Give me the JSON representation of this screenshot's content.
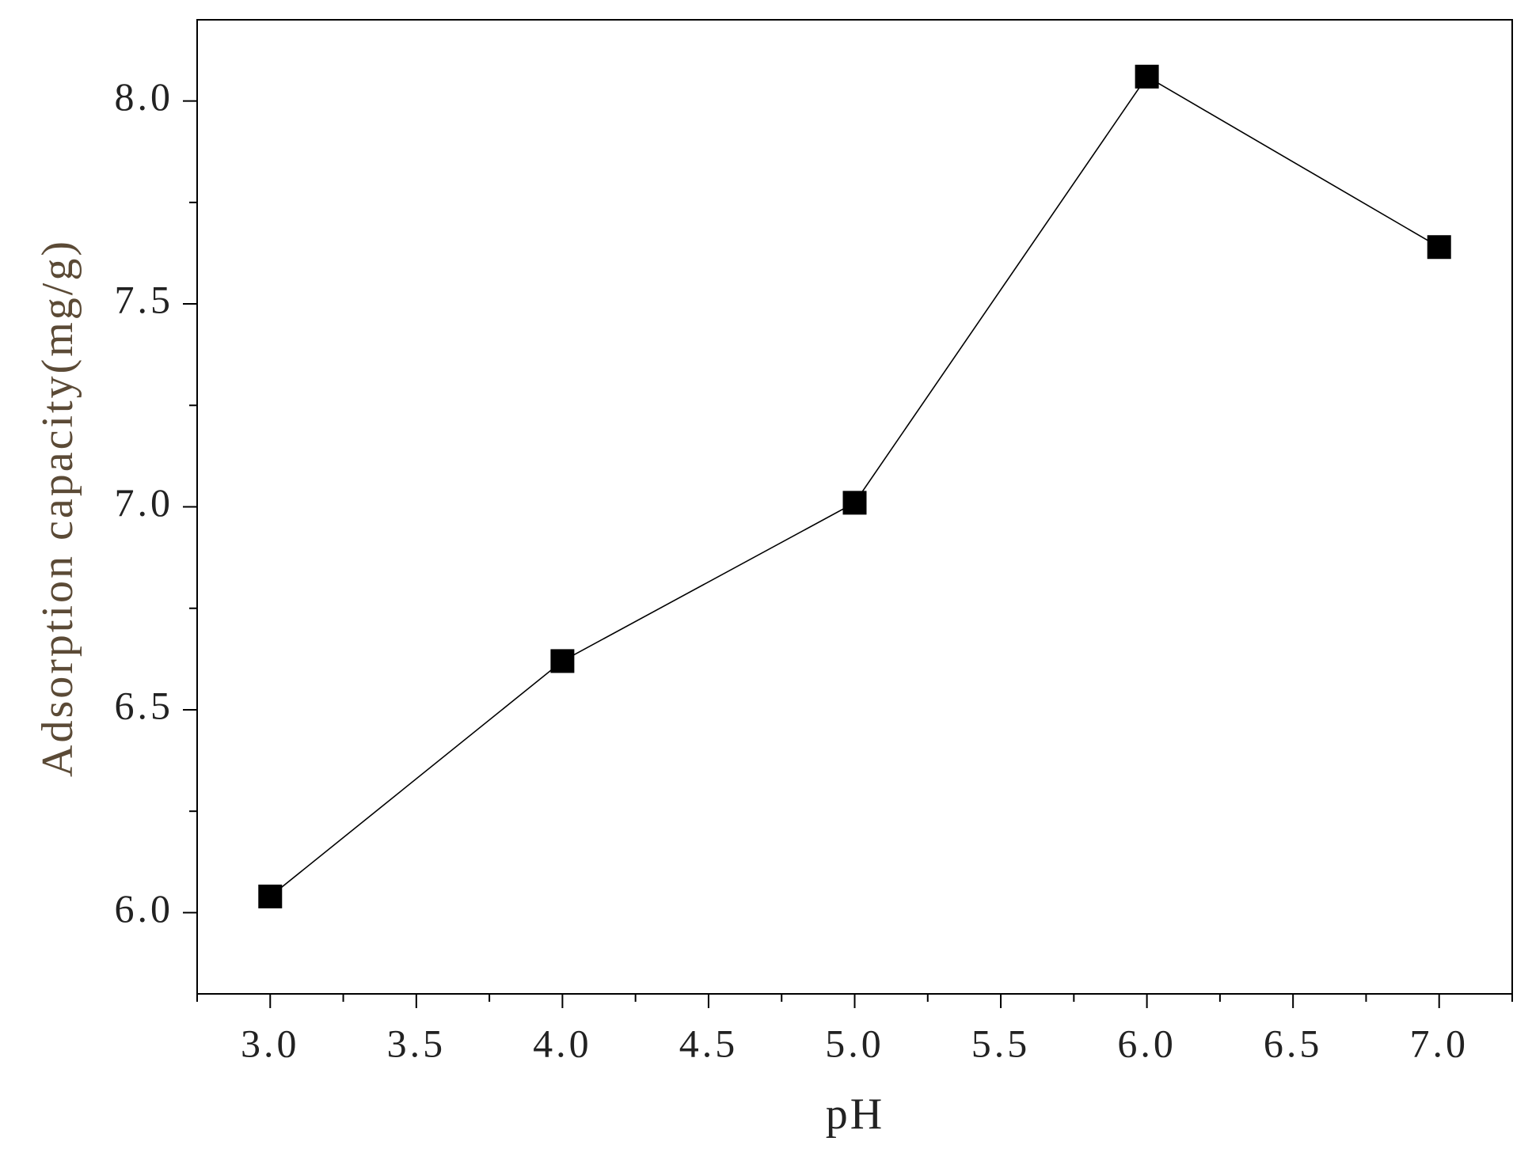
{
  "chart_data": {
    "type": "line",
    "x_label": "pH",
    "y_label": "Adsorption capacity(mg/g)",
    "x": [
      3,
      4,
      5,
      6,
      7
    ],
    "series": [
      {
        "name": "Adsorption capacity",
        "color": "#000000",
        "marker": "square",
        "values": [
          6.04,
          6.62,
          7.01,
          8.06,
          7.64
        ]
      }
    ],
    "xlim": [
      2.75,
      7.25
    ],
    "ylim": [
      5.8,
      8.2
    ],
    "xticks": [
      {
        "value": 3,
        "label": "3.0"
      },
      3.5,
      {
        "value": 4,
        "label": "4.0"
      },
      4.5,
      {
        "value": 5,
        "label": "5.0"
      },
      5.5,
      {
        "value": 6,
        "label": "6.0"
      },
      6.5,
      {
        "value": 7,
        "label": "7.0"
      }
    ],
    "yticks": [
      {
        "value": 6,
        "label": "6.0"
      },
      6.5,
      {
        "value": 7,
        "label": "7.0"
      },
      7.5,
      {
        "value": 8,
        "label": "8.0"
      }
    ],
    "xminorticks": [
      2.75,
      3.25,
      3.75,
      4.25,
      4.75,
      5.25,
      5.75,
      6.25,
      6.75,
      7.25
    ],
    "yminorticks": [
      6.25,
      6.75,
      7.25,
      7.75
    ],
    "y_label_color": "#5b4a36",
    "grid": false
  }
}
